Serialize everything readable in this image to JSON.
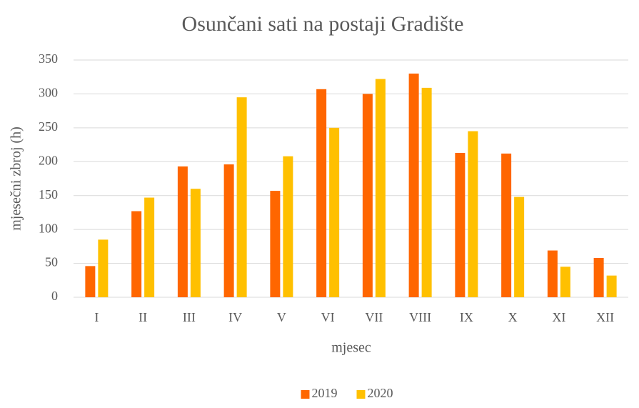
{
  "chart_data": {
    "type": "bar",
    "title": "Osunčani sati na postaji Gradište",
    "x_label": "mjesec",
    "y_label": "mjesečni zbroj (h)",
    "categories": [
      "I",
      "II",
      "III",
      "IV",
      "V",
      "VI",
      "VII",
      "VIII",
      "IX",
      "X",
      "XI",
      "XII"
    ],
    "series": [
      {
        "name": "2019",
        "color": "#ff6600",
        "values": [
          46,
          127,
          193,
          196,
          157,
          307,
          300,
          330,
          213,
          212,
          69,
          58
        ]
      },
      {
        "name": "2020",
        "color": "#ffc000",
        "values": [
          85,
          147,
          160,
          295,
          208,
          250,
          322,
          309,
          245,
          148,
          45,
          32
        ]
      }
    ],
    "ylim": [
      0,
      350
    ],
    "yticks": [
      0,
      50,
      100,
      150,
      200,
      250,
      300,
      350
    ],
    "grid": true,
    "legend": "bottom"
  }
}
